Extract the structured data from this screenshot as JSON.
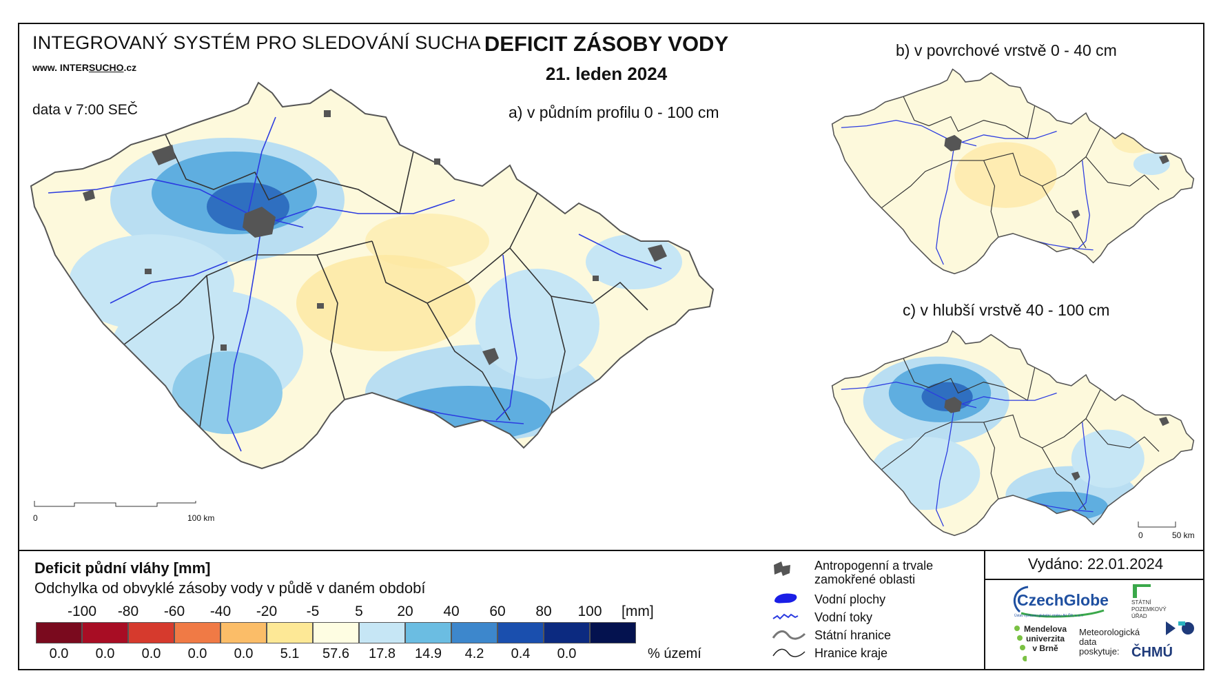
{
  "header": {
    "system_title": "INTEGROVANÝ SYSTÉM PRO SLEDOVÁNÍ SUCHA",
    "url_prefix": "www. INTER",
    "url_highlight": "SUCHO",
    "url_suffix": ".cz",
    "data_time": "data v 7:00 SEČ",
    "main_title": "DEFICIT ZÁSOBY VODY",
    "date": "21. leden 2024"
  },
  "panels": {
    "a": "a) v půdním profilu 0 - 100 cm",
    "b": "b) v povrchové vrstvě 0 - 40 cm",
    "c": "c) v hlubší vrstvě 40 - 100 cm"
  },
  "scale_bars": {
    "main": {
      "start": "0",
      "end": "100 km"
    },
    "small": {
      "start": "0",
      "end": "50 km"
    }
  },
  "legend": {
    "title": "Deficit půdní vláhy  [mm]",
    "subtitle": "Odchylka od obvyklé zásoby vody v půdě v daném období",
    "unit": "[mm]",
    "percent_unit": "% území",
    "ticks": [
      "-100",
      "-80",
      "-60",
      "-40",
      "-20",
      "-5",
      "5",
      "20",
      "40",
      "60",
      "80",
      "100"
    ],
    "classes": [
      {
        "color": "#7a0a1e",
        "percent": "0.0"
      },
      {
        "color": "#a80d24",
        "percent": "0.0"
      },
      {
        "color": "#d63a2d",
        "percent": "0.0"
      },
      {
        "color": "#f07a45",
        "percent": "0.0"
      },
      {
        "color": "#fbbd68",
        "percent": "0.0"
      },
      {
        "color": "#fde896",
        "percent": "5.1"
      },
      {
        "color": "#fefde2",
        "percent": "57.6"
      },
      {
        "color": "#c6e6f5",
        "percent": "17.8"
      },
      {
        "color": "#6bbde2",
        "percent": "14.9"
      },
      {
        "color": "#3d87cc",
        "percent": "4.2"
      },
      {
        "color": "#1a4fae",
        "percent": "0.4"
      },
      {
        "color": "#0c2a80",
        "percent": "0.0"
      },
      {
        "color": "#04124f",
        "percent": ""
      }
    ]
  },
  "map_legend": {
    "anthropogenic_line1": "Antropogenní a trvale",
    "anthropogenic_line2": "zamokřené oblasti",
    "water_bodies": "Vodní plochy",
    "rivers": "Vodní toky",
    "state_border": "Státní hranice",
    "region_border": "Hranice kraje"
  },
  "issued": "Vydáno: 22.01.2024",
  "logos": {
    "czechglobe": "CzechGlobe",
    "czechglobe_sub": "Ústav výzkumu globální změny AV ČR, v. v. i.",
    "spu_line1": "STÁTNÍ",
    "spu_line2": "POZEMKOVÝ",
    "spu_line3": "ÚŘAD",
    "mendel_line1": "Mendelova",
    "mendel_line2": "univerzita",
    "mendel_line3": "v Brně",
    "meteo_line1": "Meteorologická",
    "meteo_line2": "data",
    "meteo_line3": "poskytuje:",
    "chmu": "ČHMÚ"
  },
  "colors": {
    "background_land": "#fdf9dc",
    "wet_light": "#b9def2",
    "wet_mid": "#5faee0",
    "wet_dark": "#2f6fc0",
    "dry": "#fde7a0",
    "river": "#2b3be0",
    "urban": "#555555",
    "region_border": "#333333"
  }
}
